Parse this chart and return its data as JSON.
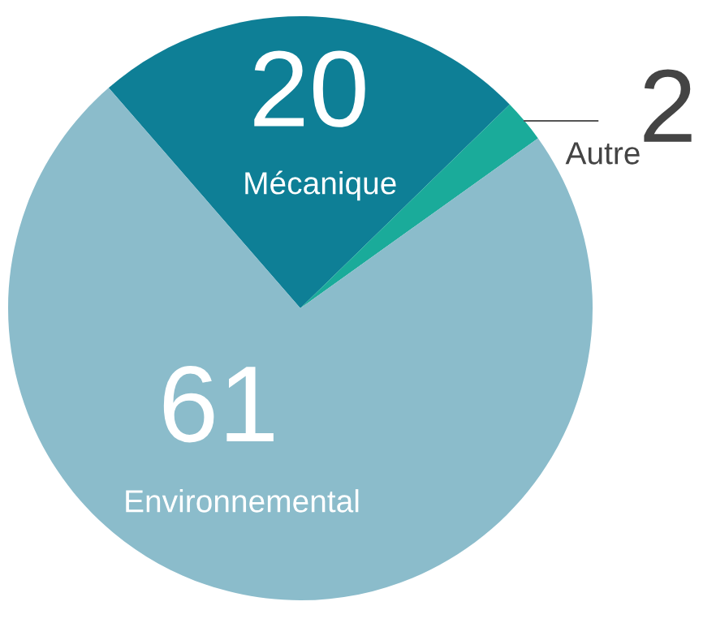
{
  "chart_data": {
    "type": "pie",
    "categories": [
      "Mécanique",
      "Autre",
      "Environnemental"
    ],
    "values": [
      20,
      2,
      61
    ],
    "colors": [
      "#0e7f96",
      "#1aab9a",
      "#8bbccb"
    ],
    "data_labels": true
  }
}
